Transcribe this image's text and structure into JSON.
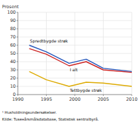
{
  "chart_data": {
    "type": "line",
    "y_label": "Prosent",
    "x": [
      1992,
      1995,
      1999,
      2002,
      2005,
      2010
    ],
    "series": [
      {
        "name": "Spredtbygde strøk",
        "color": "#2255bb",
        "values": [
          60,
          52,
          38,
          43,
          32,
          28
        ]
      },
      {
        "name": "I alt",
        "color": "#cc2222",
        "values": [
          56,
          49,
          35,
          40,
          30,
          27
        ]
      },
      {
        "name": "Tettbygde strøk",
        "color": "#ddaa00",
        "values": [
          28,
          18,
          10,
          15,
          14,
          10
        ]
      }
    ],
    "xlim": [
      1990,
      2010
    ],
    "ylim": [
      0,
      100
    ],
    "xticks": [
      1990,
      1995,
      2000,
      2005,
      2010
    ],
    "yticks": [
      0,
      10,
      20,
      30,
      40,
      50,
      60,
      70,
      80,
      90,
      100
    ],
    "grid": true,
    "annotations": [
      "¹ Husholdningsundersøkelser.",
      "Kilde: Tusенårsmålsdatabase, Statistisk sentralbyrå."
    ]
  }
}
